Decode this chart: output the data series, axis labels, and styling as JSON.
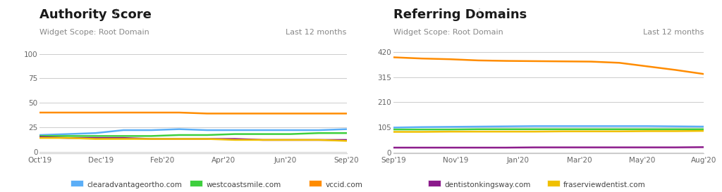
{
  "chart1": {
    "title": "Authority Score",
    "title_i": "i",
    "subtitle": "Widget Scope: Root Domain",
    "subtitle_right": "Last 12 months",
    "xticks": [
      "Oct'19",
      "Dec'19",
      "Feb'20",
      "Apr'20",
      "Jun'20",
      "Sep'20"
    ],
    "yticks": [
      0,
      25,
      50,
      75,
      100
    ],
    "ylim": [
      -2,
      108
    ],
    "series": {
      "clearadvantageortho.com": {
        "color": "#5baef7",
        "values": [
          17,
          18,
          19,
          22,
          22,
          23,
          22,
          22,
          22,
          22,
          22,
          23
        ]
      },
      "westcoastsmile.com": {
        "color": "#3ecf3e",
        "values": [
          16,
          16,
          16,
          16,
          16,
          17,
          17,
          18,
          18,
          18,
          19,
          19
        ]
      },
      "vccid.com": {
        "color": "#ff8c00",
        "values": [
          40,
          40,
          40,
          40,
          40,
          40,
          39,
          39,
          39,
          39,
          39,
          39
        ]
      },
      "dentistonkingsway.com": {
        "color": "#8b1a8b",
        "values": [
          15,
          14,
          14,
          14,
          13,
          13,
          13,
          13,
          12,
          12,
          12,
          12
        ]
      },
      "fraserviewdentist.com": {
        "color": "#f0c000",
        "values": [
          14,
          14,
          13,
          13,
          13,
          13,
          13,
          12,
          12,
          12,
          12,
          11
        ]
      }
    },
    "n_points": 12
  },
  "chart2": {
    "title": "Referring Domains",
    "title_i": "i",
    "subtitle": "Widget Scope: Root Domain",
    "subtitle_right": "Last 12 months",
    "xticks": [
      "Sep'19",
      "Nov'19",
      "Jan'20",
      "Mar'20",
      "May'20",
      "Aug'20"
    ],
    "yticks": [
      0,
      105,
      210,
      315,
      420
    ],
    "ylim": [
      -5,
      445
    ],
    "series": {
      "clearadvantageortho.com": {
        "color": "#5baef7",
        "values": [
          104,
          106,
          107,
          108,
          109,
          110,
          110,
          110,
          110,
          110,
          109,
          108
        ]
      },
      "westcoastsmile.com": {
        "color": "#3ecf3e",
        "values": [
          96,
          96,
          96,
          97,
          97,
          97,
          97,
          97,
          97,
          97,
          97,
          97
        ]
      },
      "vccid.com": {
        "color": "#ff8c00",
        "values": [
          398,
          393,
          390,
          385,
          383,
          382,
          381,
          380,
          375,
          360,
          345,
          328
        ]
      },
      "dentistonkingsway.com": {
        "color": "#8b1a8b",
        "values": [
          20,
          20,
          20,
          20,
          20,
          21,
          21,
          21,
          21,
          21,
          21,
          22
        ]
      },
      "fraserviewdentist.com": {
        "color": "#f0c000",
        "values": [
          86,
          86,
          87,
          87,
          87,
          87,
          88,
          88,
          88,
          89,
          89,
          90
        ]
      }
    },
    "n_points": 12
  },
  "legend": [
    {
      "label": "clearadvantageortho.com",
      "color": "#5baef7"
    },
    {
      "label": "westcoastsmile.com",
      "color": "#3ecf3e"
    },
    {
      "label": "vccid.com",
      "color": "#ff8c00"
    },
    {
      "label": "dentistonkingsway.com",
      "color": "#8b1a8b"
    },
    {
      "label": "fraserviewdentist.com",
      "color": "#f0c000"
    }
  ],
  "bg_color": "#ffffff",
  "grid_color": "#cccccc",
  "title_fontsize": 13,
  "title_i_fontsize": 10,
  "subtitle_fontsize": 8,
  "axis_fontsize": 7.5,
  "line_width": 1.8
}
